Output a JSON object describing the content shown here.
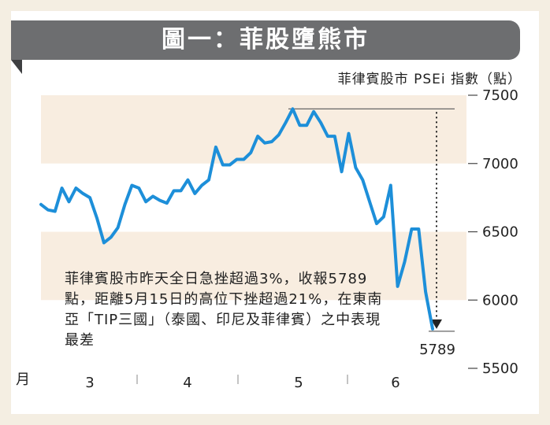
{
  "title": "圖一：菲股墮熊市",
  "chart_data": {
    "type": "line",
    "unit_label": "菲律賓股市 PSEi 指數（點）",
    "ylim": [
      5500,
      7500
    ],
    "yticks": [
      5500,
      6000,
      6500,
      7000,
      7500
    ],
    "x_axis_prefix": "月",
    "month_labels": [
      "3",
      "4",
      "5",
      "6"
    ],
    "grid": false,
    "series": [
      {
        "values": [
          6700,
          6660,
          6650,
          6820,
          6720,
          6820,
          6780,
          6750,
          6600,
          6420,
          6460,
          6530,
          6700,
          6840,
          6820,
          6720,
          6760,
          6730,
          6710,
          6800,
          6800,
          6880,
          6780,
          6840,
          6880,
          7120,
          6990,
          6990,
          7030,
          7030,
          7080,
          7200,
          7150,
          7160,
          7210,
          7300,
          7400,
          7280,
          7280,
          7380,
          7300,
          7200,
          7200,
          6940,
          7220,
          6970,
          6880,
          6720,
          6560,
          6610,
          6840,
          6100,
          6280,
          6520,
          6520,
          6060,
          5789
        ]
      }
    ],
    "annotations": {
      "last_value_label": "5789",
      "high_value": 7400,
      "last_value": 5789,
      "note": "菲律賓股市昨天全日急挫超過3%，收報5789點，距離5月15日的高位下挫超過21%，在東南亞「TIP三國」（泰國、印尼及菲律賓）之中表現最差"
    }
  },
  "colors": {
    "line": "#1d8fd9",
    "band": "#f8ede0",
    "title_bar": "#6d6e70",
    "page_bg": "#f4eee2",
    "guide": "#666666"
  }
}
